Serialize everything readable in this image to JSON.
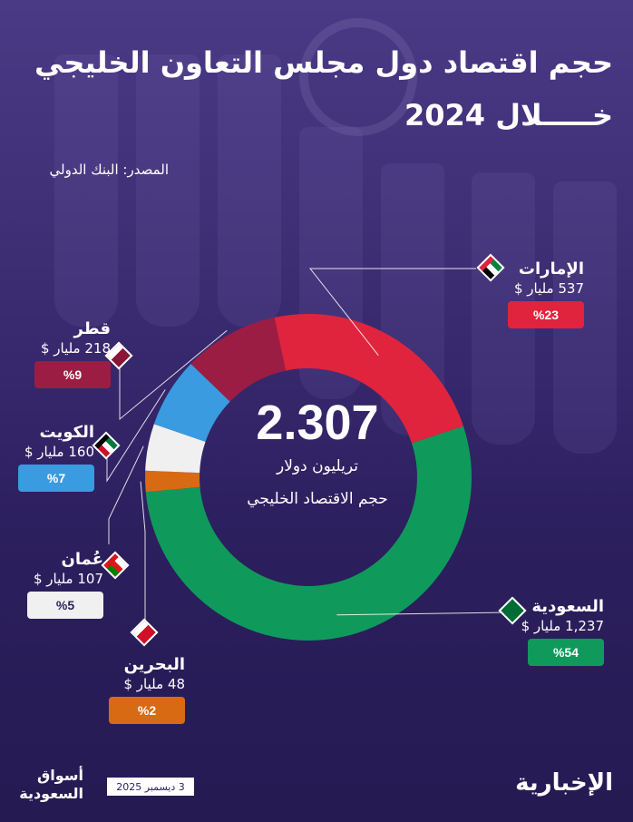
{
  "title_line1": "حجم اقتصاد دول مجلس التعاون الخليجي",
  "title_line2": "خـــــلال 2024",
  "source": "المصدر: البنك الدولي",
  "center": {
    "value": "2.307",
    "unit": "تريليون دولار",
    "desc": "حجم الاقتصاد الخليجي"
  },
  "chart_data": {
    "type": "pie",
    "title": "حجم اقتصاد دول مجلس التعاون الخليجي خلال 2024",
    "total_label": "2.307",
    "slices": [
      {
        "name": "الإمارات",
        "value_label": "537 مليار $",
        "value": 537,
        "pct_label": "%23",
        "pct": 23,
        "color": "#e0243d"
      },
      {
        "name": "السعودية",
        "value_label": "1,237 مليار $",
        "value": 1237,
        "pct_label": "%54",
        "pct": 54,
        "color": "#0f9a5c"
      },
      {
        "name": "البحرين",
        "value_label": "48 مليار $",
        "value": 48,
        "pct_label": "%2",
        "pct": 2,
        "color": "#d86a14"
      },
      {
        "name": "عُمان",
        "value_label": "107 مليار $",
        "value": 107,
        "pct_label": "%5",
        "pct": 5,
        "color": "#f0f0f0"
      },
      {
        "name": "الكويت",
        "value_label": "160 مليار $",
        "value": 160,
        "pct_label": "%7",
        "pct": 7,
        "color": "#3a9be0"
      },
      {
        "name": "قطر",
        "value_label": "218 مليار $",
        "value": 218,
        "pct_label": "%9",
        "pct": 9,
        "color": "#9c1d44"
      }
    ]
  },
  "footer": {
    "logo": "أسواق السعودية",
    "date": "3 ديسمبر 2025",
    "brand": "الإخبارية"
  },
  "colors": {
    "bg_top": "#4a3a86",
    "bg_bottom": "#251a52"
  }
}
